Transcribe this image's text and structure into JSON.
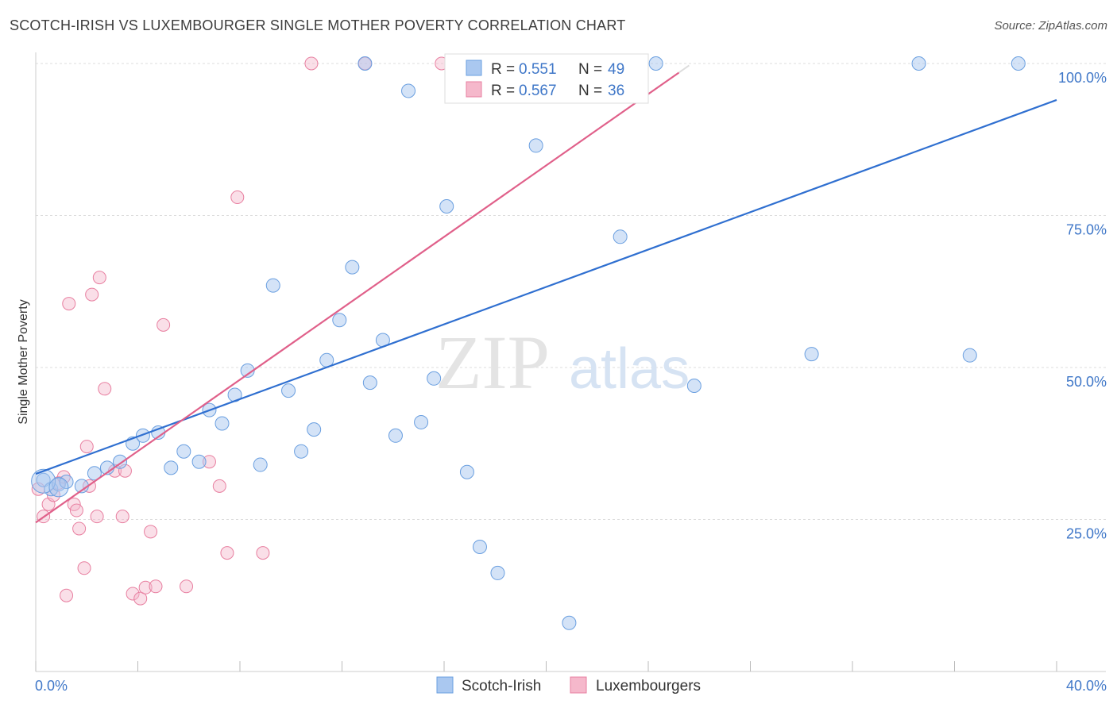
{
  "title": "SCOTCH-IRISH VS LUXEMBOURGER SINGLE MOTHER POVERTY CORRELATION CHART",
  "source": "Source: ZipAtlas.com",
  "watermark": {
    "zip": "ZIP",
    "atlas": "atlas"
  },
  "colors": {
    "blue_fill": "#aac8f0",
    "blue_stroke": "#6a9fe0",
    "blue_line": "#2f6fd0",
    "pink_fill": "#f5b8cb",
    "pink_stroke": "#e87fa0",
    "pink_line": "#e0608a",
    "grid": "#dddddd",
    "axis_text": "#3f77c8"
  },
  "chart_data": {
    "type": "scatter",
    "title": "SCOTCH-IRISH VS LUXEMBOURGER SINGLE MOTHER POVERTY CORRELATION CHART",
    "xlabel": "",
    "ylabel": "Single Mother Poverty",
    "xlim": [
      0,
      40
    ],
    "ylim": [
      0,
      102
    ],
    "x_tick_labels": [
      "0.0%",
      "40.0%"
    ],
    "y_ticks": [
      25,
      50,
      75,
      100
    ],
    "y_tick_labels": [
      "25.0%",
      "50.0%",
      "75.0%",
      "100.0%"
    ],
    "grid": true,
    "legend_placement": "top-center",
    "series": [
      {
        "name": "Scotch-Irish",
        "R": "0.551",
        "N": "49",
        "trend": {
          "x": [
            0.0,
            40.0
          ],
          "y": [
            32.5,
            94.0
          ]
        },
        "points": [
          [
            0.3,
            31.5
          ],
          [
            0.6,
            30.0
          ],
          [
            0.9,
            30.8
          ],
          [
            1.2,
            31.2
          ],
          [
            1.8,
            30.5
          ],
          [
            2.3,
            32.6
          ],
          [
            2.8,
            33.5
          ],
          [
            3.3,
            34.5
          ],
          [
            3.8,
            37.5
          ],
          [
            4.2,
            38.8
          ],
          [
            4.8,
            39.3
          ],
          [
            5.3,
            33.5
          ],
          [
            5.8,
            36.2
          ],
          [
            6.4,
            34.5
          ],
          [
            6.8,
            43.0
          ],
          [
            7.3,
            40.8
          ],
          [
            7.8,
            45.5
          ],
          [
            8.3,
            49.5
          ],
          [
            8.8,
            34.0
          ],
          [
            9.3,
            63.5
          ],
          [
            9.9,
            46.2
          ],
          [
            10.4,
            36.2
          ],
          [
            10.9,
            39.8
          ],
          [
            11.4,
            51.2
          ],
          [
            11.9,
            57.8
          ],
          [
            12.4,
            66.5
          ],
          [
            12.9,
            100.0
          ],
          [
            13.1,
            47.5
          ],
          [
            13.6,
            54.5
          ],
          [
            14.1,
            38.8
          ],
          [
            14.6,
            95.5
          ],
          [
            15.1,
            41.0
          ],
          [
            15.6,
            48.2
          ],
          [
            16.1,
            76.5
          ],
          [
            16.9,
            32.8
          ],
          [
            17.4,
            20.5
          ],
          [
            18.1,
            16.2
          ],
          [
            18.9,
            100.0
          ],
          [
            19.6,
            86.5
          ],
          [
            20.9,
            8.0
          ],
          [
            21.4,
            100.0
          ],
          [
            21.9,
            100.0
          ],
          [
            22.9,
            71.5
          ],
          [
            24.3,
            100.0
          ],
          [
            25.8,
            47.0
          ],
          [
            30.4,
            52.2
          ],
          [
            34.6,
            100.0
          ],
          [
            36.6,
            52.0
          ],
          [
            38.5,
            100.0
          ]
        ]
      },
      {
        "name": "Luxembourgers",
        "R": "0.567",
        "N": "36",
        "trend": {
          "x": [
            0.0,
            25.2
          ],
          "y": [
            24.5,
            98.5
          ]
        },
        "points": [
          [
            0.1,
            30.0
          ],
          [
            0.3,
            25.5
          ],
          [
            0.5,
            27.5
          ],
          [
            0.7,
            29.0
          ],
          [
            0.9,
            31.0
          ],
          [
            1.1,
            32.0
          ],
          [
            1.2,
            12.5
          ],
          [
            1.3,
            60.5
          ],
          [
            1.5,
            27.5
          ],
          [
            1.6,
            26.5
          ],
          [
            1.7,
            23.5
          ],
          [
            1.9,
            17.0
          ],
          [
            2.0,
            37.0
          ],
          [
            2.1,
            30.5
          ],
          [
            2.2,
            62.0
          ],
          [
            2.4,
            25.5
          ],
          [
            2.5,
            64.8
          ],
          [
            2.7,
            46.5
          ],
          [
            3.1,
            33.0
          ],
          [
            3.4,
            25.5
          ],
          [
            3.5,
            33.0
          ],
          [
            3.8,
            12.8
          ],
          [
            4.1,
            12.0
          ],
          [
            4.3,
            13.8
          ],
          [
            4.5,
            23.0
          ],
          [
            4.7,
            14.0
          ],
          [
            5.0,
            57.0
          ],
          [
            5.9,
            14.0
          ],
          [
            6.8,
            34.5
          ],
          [
            7.2,
            30.5
          ],
          [
            7.5,
            19.5
          ],
          [
            7.9,
            78.0
          ],
          [
            8.9,
            19.5
          ],
          [
            10.8,
            100.0
          ],
          [
            12.9,
            100.0
          ],
          [
            15.9,
            100.0
          ]
        ]
      }
    ]
  }
}
